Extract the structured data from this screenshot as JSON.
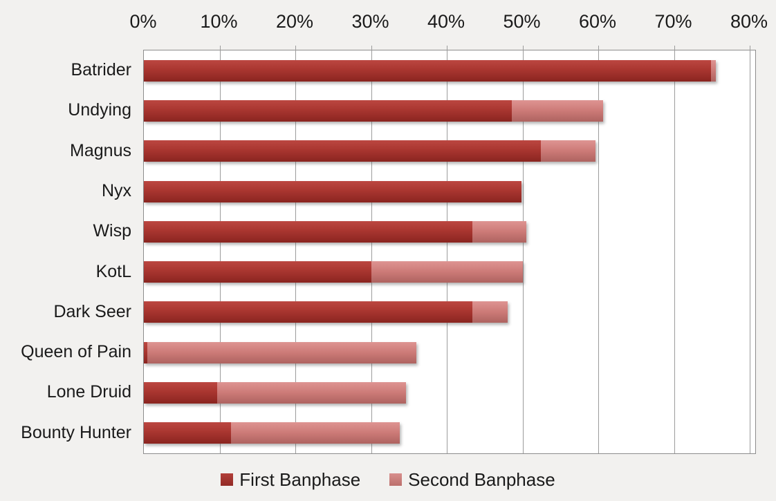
{
  "title": "",
  "colors": {
    "background": "#F2F1EF",
    "plot_background": "#FFFFFF",
    "gridline": "#9B9B9B",
    "plot_border": "#8C8C8C",
    "first_banphase": "#A93630",
    "second_banphase": "#CC7A77",
    "text": "#1A1A1A"
  },
  "chart_data": {
    "type": "bar",
    "orientation": "horizontal",
    "stacked": true,
    "grid": true,
    "categories": [
      "Batrider",
      "Undying",
      "Magnus",
      "Nyx",
      "Wisp",
      "KotL",
      "Dark Seer",
      "Queen of Pain",
      "Lone Druid",
      "Bounty Hunter"
    ],
    "series": [
      {
        "name": "First Banphase",
        "color": "#A93630",
        "values": [
          74.9,
          48.6,
          52.4,
          49.9,
          43.4,
          30.0,
          43.4,
          0.5,
          9.7,
          11.5
        ]
      },
      {
        "name": "Second Banphase",
        "color": "#CC7A77",
        "values": [
          0.6,
          12.0,
          7.2,
          0.0,
          7.1,
          20.0,
          4.6,
          35.5,
          24.9,
          22.3
        ]
      }
    ],
    "totals": [
      75.5,
      60.6,
      59.6,
      49.9,
      50.5,
      50.0,
      48.0,
      36.0,
      34.6,
      33.8
    ],
    "x_axis": {
      "position": "top",
      "unit": "%",
      "min": 0,
      "max": 80,
      "step": 10,
      "tick_labels": [
        "0%",
        "10%",
        "20%",
        "30%",
        "40%",
        "50%",
        "60%",
        "70%",
        "80%"
      ]
    },
    "legend": {
      "position": "bottom",
      "entries": [
        "First Banphase",
        "Second Banphase"
      ]
    }
  }
}
